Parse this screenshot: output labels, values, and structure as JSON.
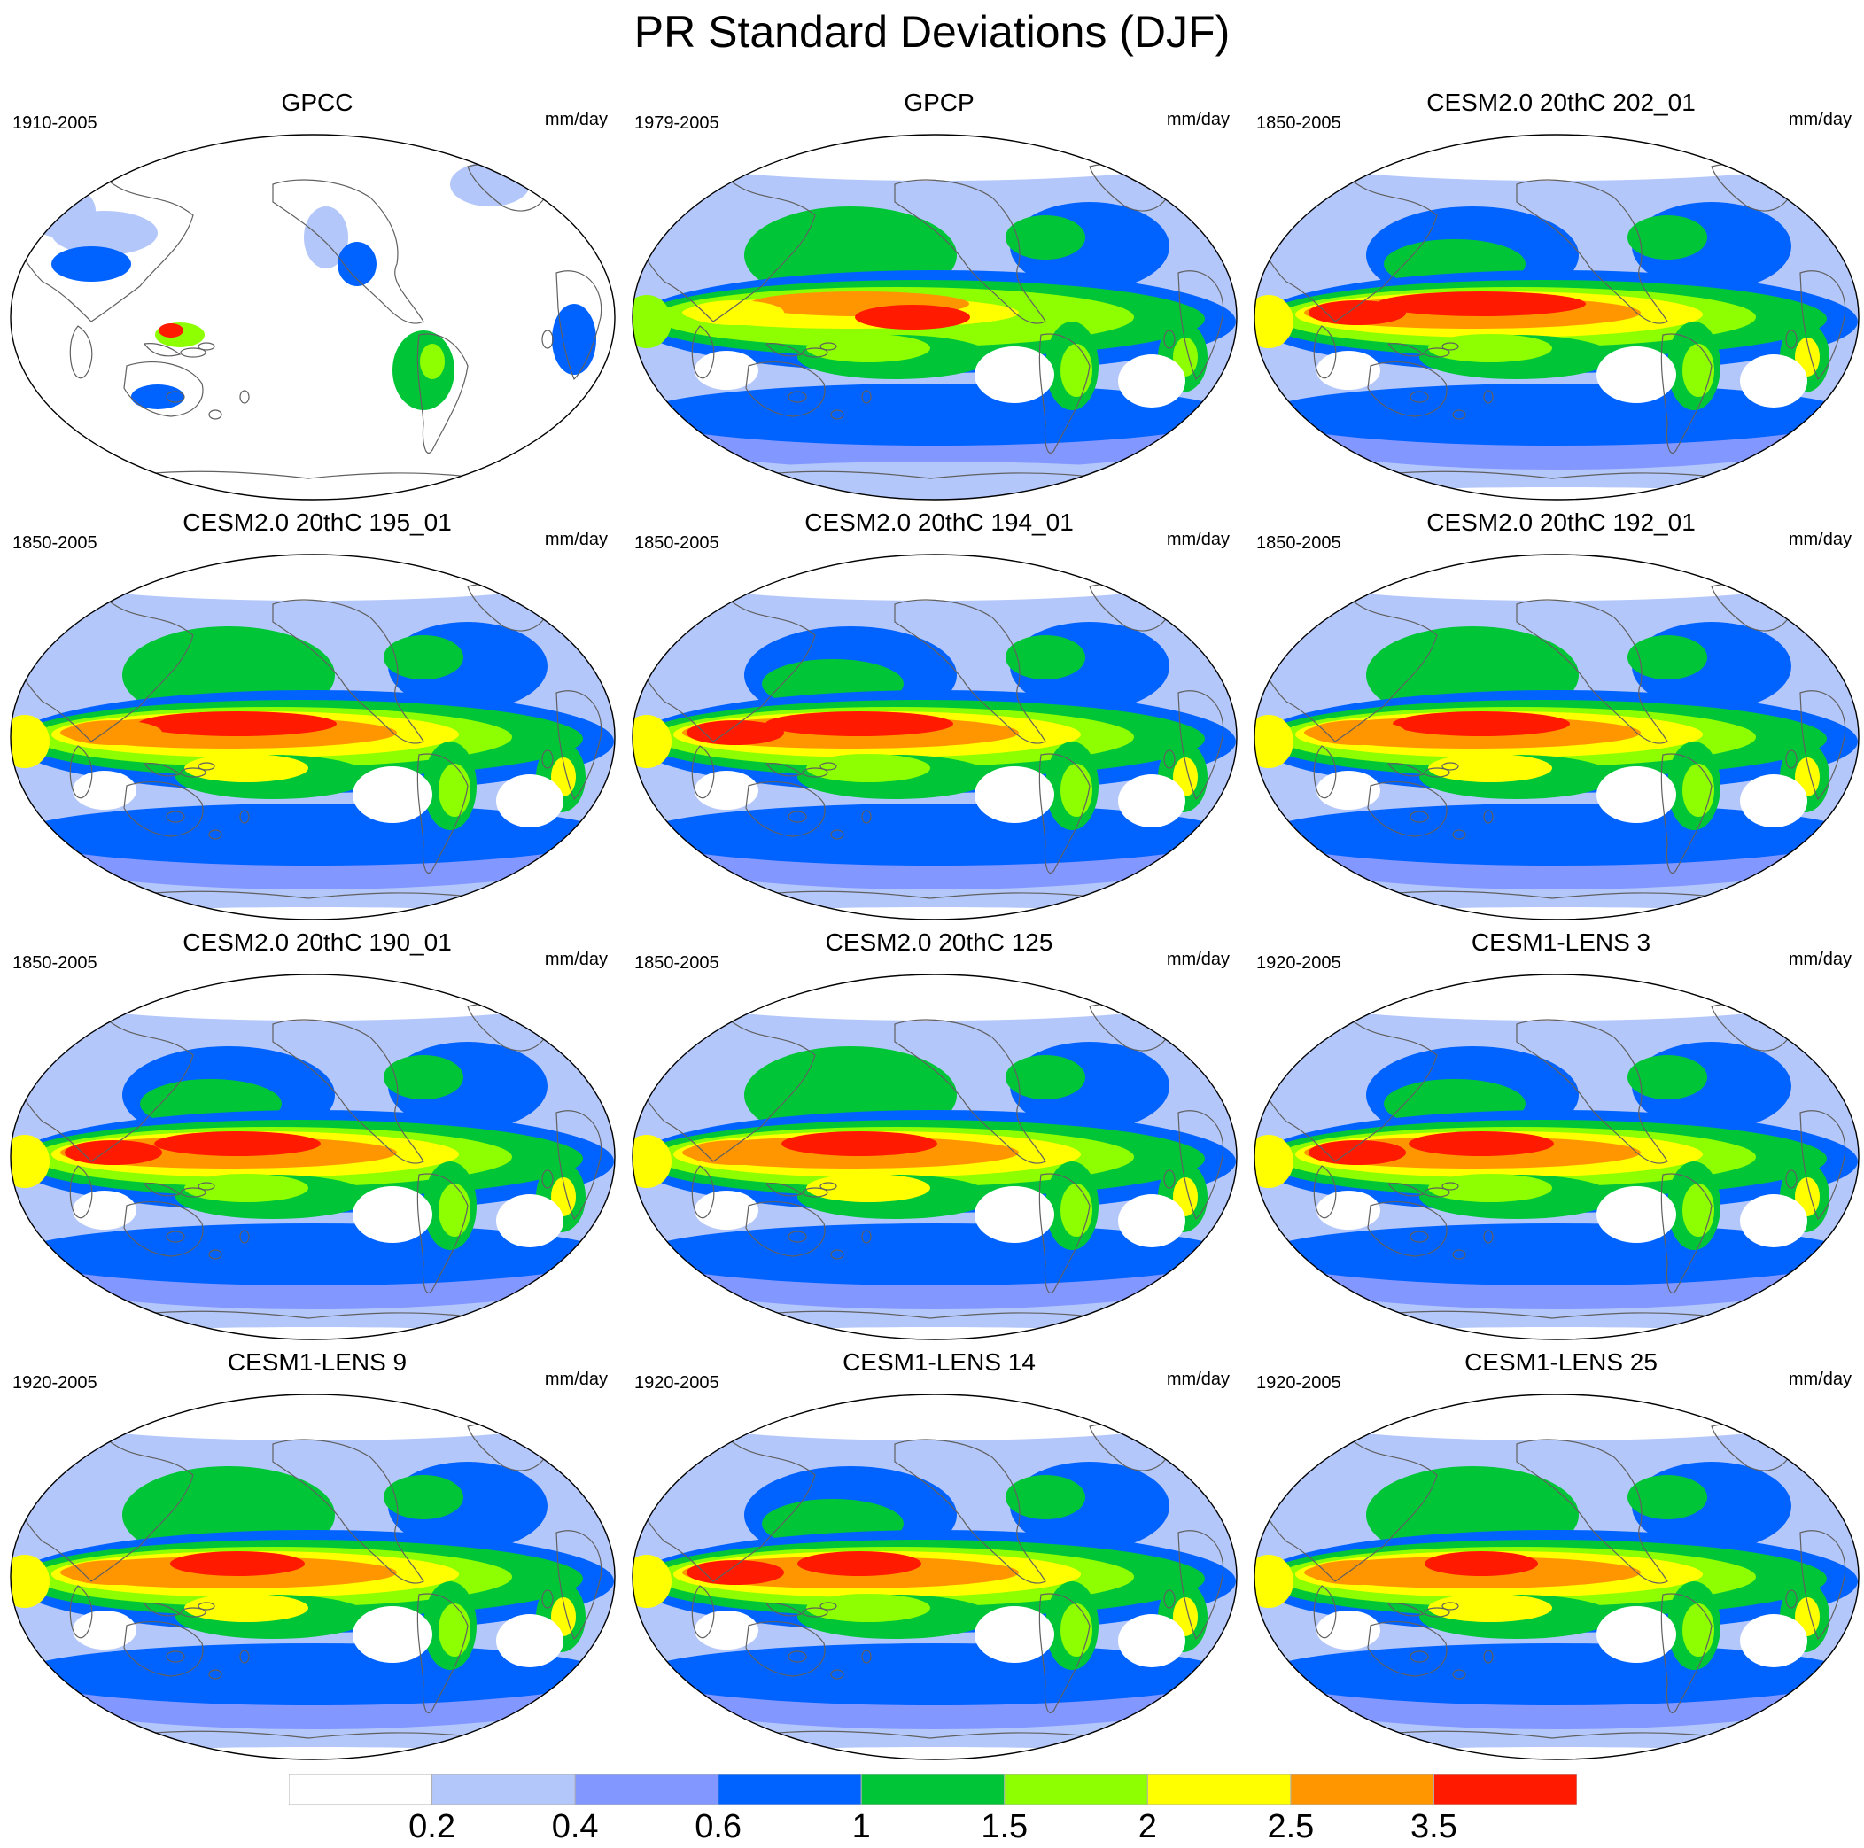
{
  "title": "PR Standard Deviations (DJF)",
  "colors": {
    "levels": [
      "#ffffff",
      "#b4c7fa",
      "#8297ff",
      "#0062ff",
      "#00c637",
      "#8dff00",
      "#ffff00",
      "#ff9600",
      "#ff1a00"
    ],
    "land_outline": "#606060",
    "frame": "#000000"
  },
  "colorbar": {
    "labels": [
      "0.2",
      "0.4",
      "0.6",
      "1",
      "1.5",
      "2",
      "2.5",
      "3.5"
    ]
  },
  "panels": [
    {
      "title": "GPCC",
      "years": "1910-2005",
      "units": "mm/day"
    },
    {
      "title": "GPCP",
      "years": "1979-2005",
      "units": "mm/day"
    },
    {
      "title": "CESM2.0 20thC 202_01",
      "years": "1850-2005",
      "units": "mm/day"
    },
    {
      "title": "CESM2.0 20thC 195_01",
      "years": "1850-2005",
      "units": "mm/day"
    },
    {
      "title": "CESM2.0 20thC 194_01",
      "years": "1850-2005",
      "units": "mm/day"
    },
    {
      "title": "CESM2.0 20thC 192_01",
      "years": "1850-2005",
      "units": "mm/day"
    },
    {
      "title": "CESM2.0 20thC 190_01",
      "years": "1850-2005",
      "units": "mm/day"
    },
    {
      "title": "CESM2.0 20thC 125",
      "years": "1850-2005",
      "units": "mm/day"
    },
    {
      "title": "CESM1-LENS 3",
      "years": "1920-2005",
      "units": "mm/day"
    },
    {
      "title": "CESM1-LENS 9",
      "years": "1920-2005",
      "units": "mm/day"
    },
    {
      "title": "CESM1-LENS 14",
      "years": "1920-2005",
      "units": "mm/day"
    },
    {
      "title": "CESM1-LENS 25",
      "years": "1920-2005",
      "units": "mm/day"
    }
  ]
}
